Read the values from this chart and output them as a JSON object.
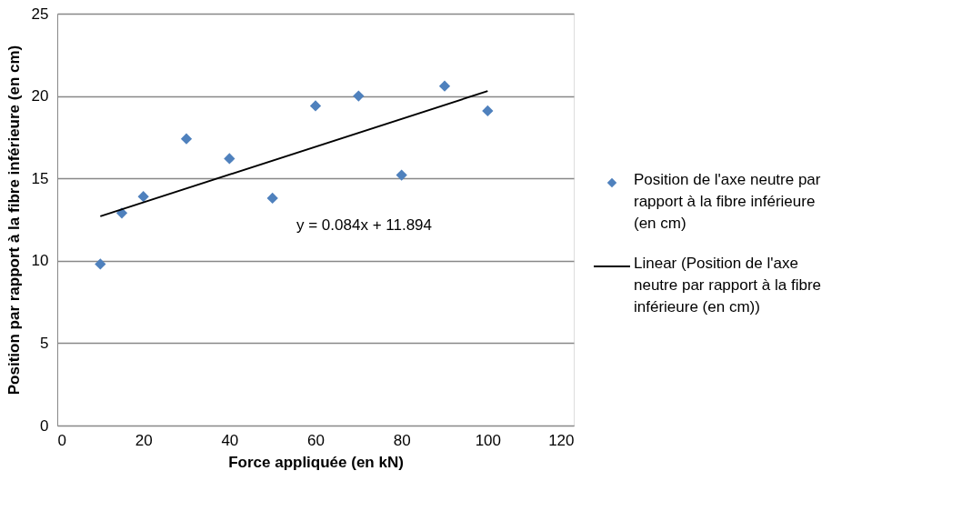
{
  "chart_data": {
    "type": "scatter",
    "xlabel": "Force appliquée (en kN)",
    "ylabel": "Position par rapport à la fibre inférieure (en cm)",
    "xlim": [
      0,
      120
    ],
    "xticks": [
      0,
      20,
      40,
      60,
      80,
      100,
      120
    ],
    "ylim": [
      0,
      25
    ],
    "yticks": [
      0,
      5,
      10,
      15,
      20,
      25
    ],
    "grid": "y",
    "legend": "right",
    "marker": "diamond",
    "series": [
      {
        "name": "Position de l'axe neutre par rapport à la fibre inférieure (en cm)",
        "color": "#4f81bd",
        "x": [
          10,
          15,
          20,
          30,
          40,
          50,
          60,
          70,
          80,
          90,
          100
        ],
        "values": [
          9.8,
          12.9,
          13.9,
          17.4,
          16.2,
          13.8,
          19.4,
          20.0,
          15.2,
          20.6,
          19.1
        ]
      },
      {
        "name": "Linear (Position de l'axe neutre par rapport à la fibre inférieure (en cm))",
        "type": "line",
        "color": "#000000",
        "marker": "none",
        "line_style": "solid",
        "x": [
          10,
          100
        ],
        "values": [
          12.7,
          20.3
        ]
      }
    ],
    "annotations": [
      "y = 0.084x + 11.894"
    ]
  }
}
